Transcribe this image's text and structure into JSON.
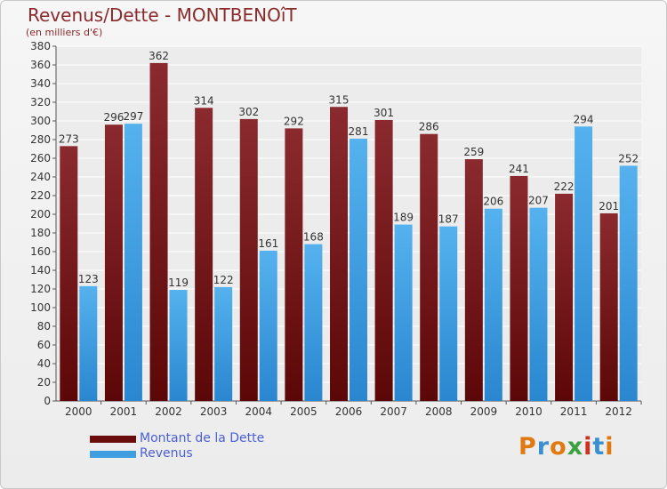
{
  "title": "Revenus/Dette - MONTBENOîT",
  "subtitle": "(en milliers d'€)",
  "colors": {
    "dette": "#6b0d0d",
    "revenus": "#3f9ee0",
    "axis_text": "#333333",
    "title": "#8b2a2a",
    "legend_text": "#4a5fd6"
  },
  "legend": [
    {
      "label": "Montant de la Dette",
      "color": "#6b0d0d"
    },
    {
      "label": "Revenus",
      "color": "#3f9ee0"
    }
  ],
  "logo": {
    "text": "Proxiti",
    "colors": [
      "#e07a10",
      "#3a8fd0",
      "#e07a10",
      "#3aa040",
      "#d03020",
      "#3a8fd0",
      "#e07a10"
    ]
  },
  "chart_data": {
    "type": "bar",
    "categories": [
      "2000",
      "2001",
      "2002",
      "2003",
      "2004",
      "2005",
      "2006",
      "2007",
      "2008",
      "2009",
      "2010",
      "2011",
      "2012"
    ],
    "series": [
      {
        "name": "Montant de la Dette",
        "values": [
          273,
          296,
          362,
          314,
          302,
          292,
          315,
          301,
          286,
          259,
          241,
          222,
          201
        ]
      },
      {
        "name": "Revenus",
        "values": [
          123,
          297,
          119,
          122,
          161,
          168,
          281,
          189,
          187,
          206,
          207,
          294,
          252
        ]
      }
    ],
    "ylim": [
      0,
      380
    ],
    "yticks": [
      0,
      20,
      40,
      60,
      80,
      100,
      120,
      140,
      160,
      180,
      200,
      220,
      240,
      260,
      280,
      300,
      320,
      340,
      360,
      380
    ],
    "grid": true,
    "legend_position": "bottom-left"
  }
}
